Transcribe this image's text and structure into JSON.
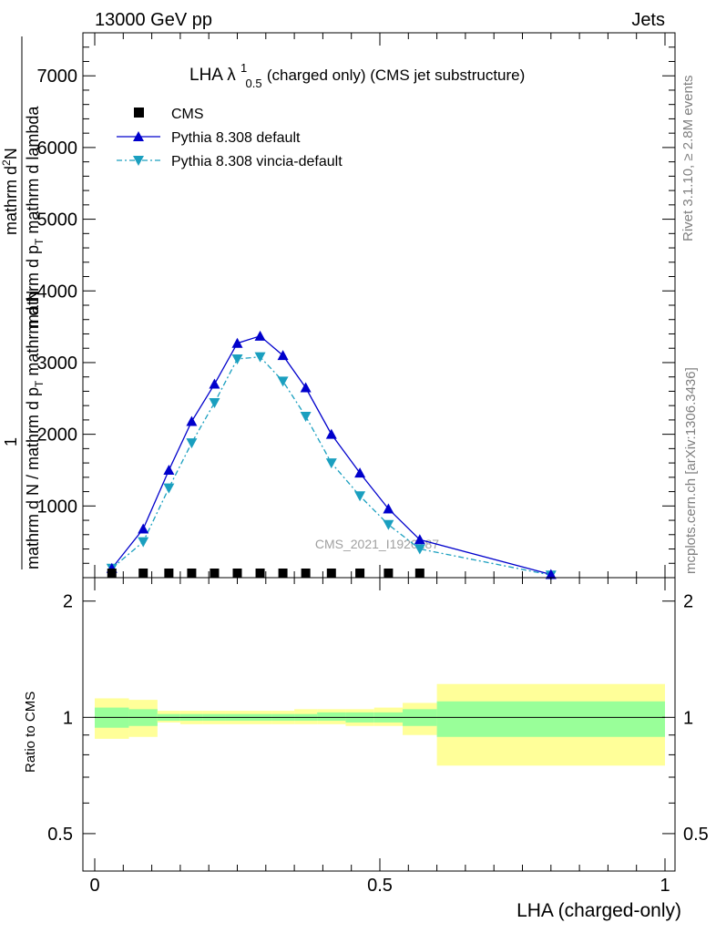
{
  "header": {
    "left": "13000 GeV pp",
    "right": "Jets",
    "side_rivet": "Rivet 3.1.10, ≥ 2.8M events",
    "side_mcplots": "mcplots.cern.ch [arXiv:1306.3436]",
    "watermark": "CMS_2021_I1920187"
  },
  "colors": {
    "cms": "#000000",
    "pythia_default": "#0000cc",
    "pythia_vincia": "#1a9fbf",
    "band_inner": "#99ff99",
    "band_outer": "#ffff99"
  },
  "chart_data": [
    {
      "type": "line",
      "title_main": "LHA λ",
      "title_sup": "1",
      "title_sub": "0.5",
      "title_rest": " (charged only) (CMS jet substructure)",
      "ylabel": "1 / (mathrm d N / mathrm d p_T) mathrm d²N / (mathrm d p_T mathrm d lambda)",
      "ylim": [
        0,
        7600
      ],
      "yticks": [
        1000,
        2000,
        3000,
        4000,
        5000,
        6000,
        7000
      ],
      "ytick_labels": [
        "1000",
        "2000",
        "3000",
        "4000",
        "5000",
        "6000",
        "7000"
      ],
      "xlim": [
        0,
        1
      ],
      "legend_position": "top-left",
      "series": [
        {
          "name": "CMS",
          "marker": "square",
          "x": [
            0.03,
            0.085,
            0.13,
            0.17,
            0.21,
            0.25,
            0.29,
            0.33,
            0.37,
            0.415,
            0.465,
            0.515,
            0.57
          ],
          "y": [
            5,
            5,
            5,
            5,
            5,
            5,
            5,
            5,
            5,
            5,
            5,
            5,
            5
          ]
        },
        {
          "name": "Pythia 8.308 default",
          "marker": "triangle-up",
          "x": [
            0.03,
            0.085,
            0.13,
            0.17,
            0.21,
            0.25,
            0.29,
            0.33,
            0.37,
            0.415,
            0.465,
            0.515,
            0.57,
            0.8
          ],
          "y": [
            130,
            680,
            1500,
            2180,
            2700,
            3270,
            3370,
            3100,
            2650,
            2000,
            1460,
            960,
            530,
            45
          ]
        },
        {
          "name": "Pythia 8.308 vincia-default",
          "marker": "triangle-down",
          "x": [
            0.03,
            0.085,
            0.13,
            0.17,
            0.21,
            0.25,
            0.29,
            0.33,
            0.37,
            0.415,
            0.465,
            0.515,
            0.57,
            0.8
          ],
          "y": [
            130,
            500,
            1250,
            1880,
            2440,
            3050,
            3080,
            2740,
            2250,
            1600,
            1140,
            740,
            400,
            35
          ]
        }
      ]
    },
    {
      "type": "area",
      "xlabel": "LHA (charged-only)",
      "ylabel": "Ratio to CMS",
      "ylim": [
        0.4,
        2.3
      ],
      "yticks": [
        0.5,
        1,
        2
      ],
      "ytick_labels": [
        "0.5",
        "1",
        "2"
      ],
      "xlim": [
        0,
        1
      ],
      "xticks": [
        0,
        0.5,
        1
      ],
      "xtick_labels": [
        "0",
        "0.5",
        "1"
      ],
      "bins": [
        {
          "x0": 0.0,
          "x1": 0.06,
          "inner": [
            0.94,
            1.06
          ],
          "outer": [
            0.88,
            1.12
          ]
        },
        {
          "x0": 0.06,
          "x1": 0.11,
          "inner": [
            0.95,
            1.05
          ],
          "outer": [
            0.89,
            1.11
          ]
        },
        {
          "x0": 0.11,
          "x1": 0.15,
          "inner": [
            0.98,
            1.02
          ],
          "outer": [
            0.97,
            1.04
          ]
        },
        {
          "x0": 0.15,
          "x1": 0.19,
          "inner": [
            0.98,
            1.02
          ],
          "outer": [
            0.96,
            1.04
          ]
        },
        {
          "x0": 0.19,
          "x1": 0.23,
          "inner": [
            0.98,
            1.02
          ],
          "outer": [
            0.96,
            1.04
          ]
        },
        {
          "x0": 0.23,
          "x1": 0.27,
          "inner": [
            0.98,
            1.02
          ],
          "outer": [
            0.96,
            1.04
          ]
        },
        {
          "x0": 0.27,
          "x1": 0.31,
          "inner": [
            0.98,
            1.02
          ],
          "outer": [
            0.96,
            1.04
          ]
        },
        {
          "x0": 0.31,
          "x1": 0.35,
          "inner": [
            0.98,
            1.02
          ],
          "outer": [
            0.96,
            1.04
          ]
        },
        {
          "x0": 0.35,
          "x1": 0.39,
          "inner": [
            0.98,
            1.02
          ],
          "outer": [
            0.96,
            1.05
          ]
        },
        {
          "x0": 0.39,
          "x1": 0.44,
          "inner": [
            0.98,
            1.03
          ],
          "outer": [
            0.96,
            1.05
          ]
        },
        {
          "x0": 0.44,
          "x1": 0.49,
          "inner": [
            0.97,
            1.03
          ],
          "outer": [
            0.95,
            1.05
          ]
        },
        {
          "x0": 0.49,
          "x1": 0.54,
          "inner": [
            0.97,
            1.03
          ],
          "outer": [
            0.95,
            1.06
          ]
        },
        {
          "x0": 0.54,
          "x1": 0.6,
          "inner": [
            0.95,
            1.05
          ],
          "outer": [
            0.9,
            1.09
          ]
        },
        {
          "x0": 0.6,
          "x1": 1.0,
          "inner": [
            0.89,
            1.1
          ],
          "outer": [
            0.75,
            1.22
          ]
        }
      ]
    }
  ]
}
